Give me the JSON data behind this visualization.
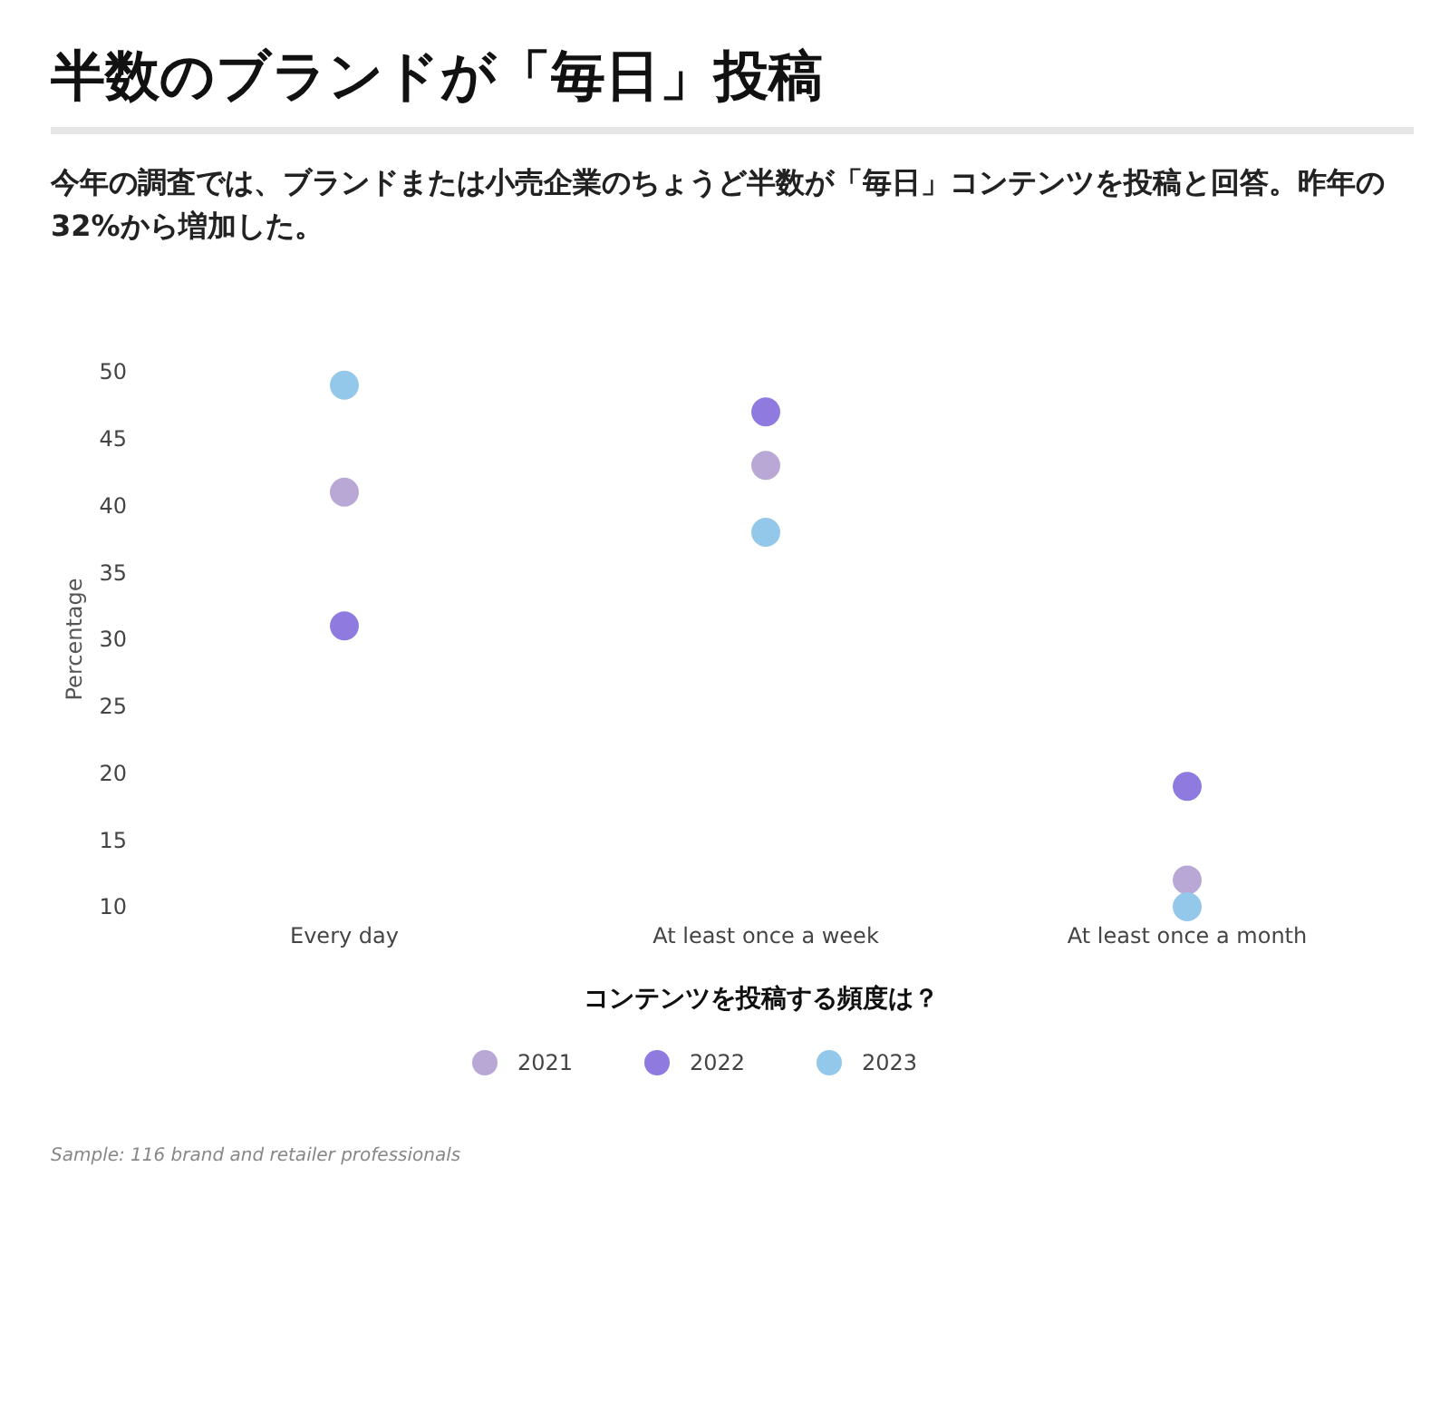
{
  "chart_data": {
    "type": "scatter",
    "title": "半数のブランドが「毎日」投稿",
    "subtitle": "今年の調査では、ブランドまたは小売企業のちょうど半数が「毎日」コンテンツを投稿と回答。昨年の32%から増加した。",
    "xlabel": "コンテンツを投稿する頻度は？",
    "ylabel": "Percentage",
    "categories": [
      "Every day",
      "At least once a week",
      "At least once a month"
    ],
    "series": [
      {
        "name": "2021",
        "color": "#b9a7d6",
        "values": [
          41,
          43,
          12
        ]
      },
      {
        "name": "2022",
        "color": "#8f7ae0",
        "values": [
          31,
          47,
          19
        ]
      },
      {
        "name": "2023",
        "color": "#93c8ea",
        "values": [
          49,
          38,
          10
        ]
      }
    ],
    "ylim": [
      10,
      50
    ],
    "yticks": [
      10,
      15,
      20,
      25,
      30,
      35,
      40,
      45,
      50
    ],
    "grid": false,
    "legend": "bottom",
    "marker": "circle",
    "annotations": [
      "Sample: 116 brand and retailer professionals"
    ]
  }
}
